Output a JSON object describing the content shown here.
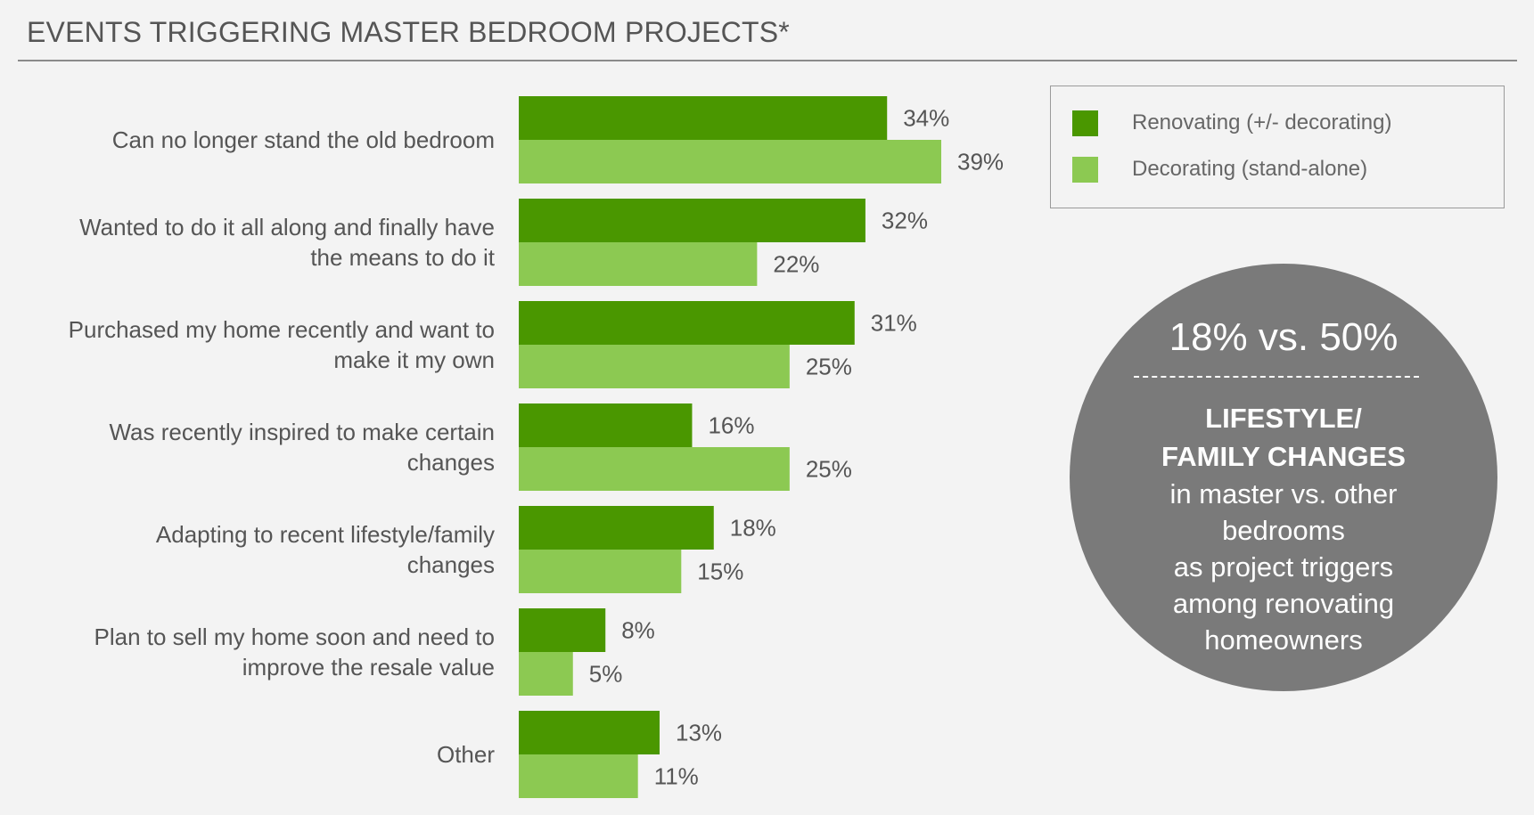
{
  "title": "EVENTS TRIGGERING MASTER BEDROOM PROJECTS*",
  "colors": {
    "renovating": "#4a9700",
    "decorating": "#8cc952",
    "text": "#555555",
    "callout": "#7a7a7a"
  },
  "legend": [
    {
      "label": "Renovating (+/- decorating)",
      "color": "#4a9700"
    },
    {
      "label": "Decorating (stand-alone)",
      "color": "#8cc952"
    }
  ],
  "callout": {
    "headline": "18% vs. 50%",
    "bold_line1": "LIFESTYLE/",
    "bold_line2": "FAMILY CHANGES",
    "text_line1": "in master vs. other",
    "text_line2": "bedrooms",
    "text_line3": "as project triggers",
    "text_line4": "among renovating",
    "text_line5": "homeowners"
  },
  "chart_data": {
    "type": "bar",
    "orientation": "horizontal",
    "title": "EVENTS TRIGGERING MASTER BEDROOM PROJECTS*",
    "categories": [
      [
        "Can no longer stand the old bedroom"
      ],
      [
        "Wanted to do it all along and finally have",
        "the means to do it"
      ],
      [
        "Purchased my home recently and want to",
        "make it my own"
      ],
      [
        "Was recently inspired to make certain",
        "changes"
      ],
      [
        "Adapting to recent lifestyle/family",
        "changes"
      ],
      [
        "Plan to sell my home soon and need to",
        "improve the resale value"
      ],
      [
        "Other"
      ]
    ],
    "series": [
      {
        "name": "Renovating (+/- decorating)",
        "values": [
          34,
          32,
          31,
          16,
          18,
          8,
          13
        ],
        "labels": [
          "34%",
          "32%",
          "31%",
          "16%",
          "18%",
          "8%",
          "13%"
        ]
      },
      {
        "name": "Decorating (stand-alone)",
        "values": [
          39,
          22,
          25,
          25,
          15,
          5,
          11
        ],
        "labels": [
          "39%",
          "22%",
          "25%",
          "25%",
          "15%",
          "5%",
          "11%"
        ]
      }
    ],
    "xlim": [
      0,
      39
    ],
    "grid": false,
    "legend_position": "top-right"
  }
}
